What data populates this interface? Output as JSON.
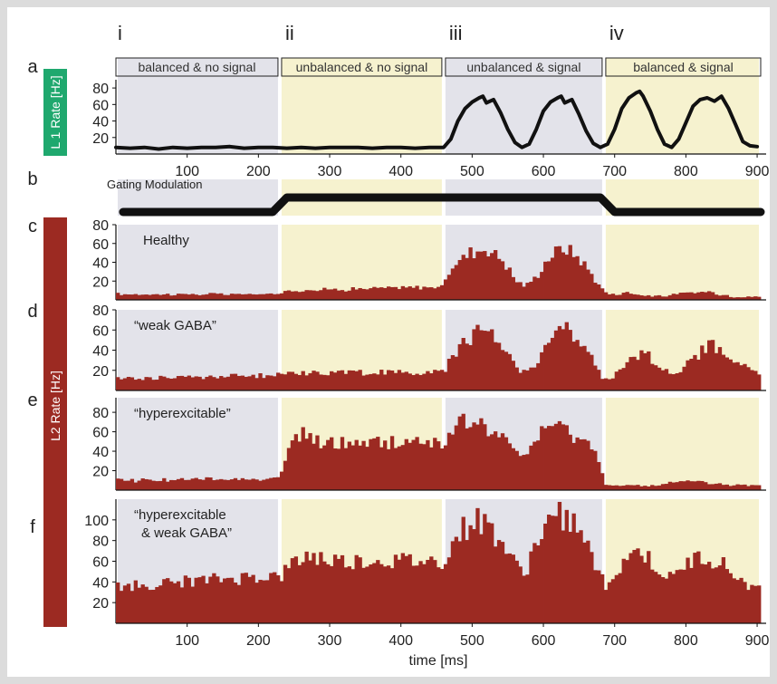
{
  "colors": {
    "background": "#dcdcdc",
    "panel": "#ffffff",
    "gray_band": "#e3e3ea",
    "yellow_band": "#f6f2cf",
    "l1_line": "#111111",
    "l2_bars": "#9c2a22",
    "l1_label_bg": "#1fa86e",
    "l2_label_bg": "#9c2a22"
  },
  "chart_data": {
    "type": "multi-panel",
    "phases": [
      {
        "numeral": "i",
        "label": "balanced & no signal",
        "x0": 0,
        "x1": 230,
        "band": "gray"
      },
      {
        "numeral": "ii",
        "label": "unbalanced & no signal",
        "x0": 230,
        "x1": 460,
        "band": "yellow"
      },
      {
        "numeral": "iii",
        "label": "unbalanced & signal",
        "x0": 460,
        "x1": 685,
        "band": "gray"
      },
      {
        "numeral": "iv",
        "label": "balanced & signal",
        "x0": 685,
        "x1": 905,
        "band": "yellow"
      }
    ],
    "xlim": [
      0,
      905
    ],
    "xticks": [
      100,
      200,
      300,
      400,
      500,
      600,
      700,
      800,
      900
    ],
    "xlabel": "time [ms]",
    "l1": {
      "letter": "a",
      "ylabel": "L 1 Rate [Hz]",
      "ylim": [
        0,
        90
      ],
      "yticks": [
        20,
        40,
        60,
        80
      ],
      "x": [
        0,
        20,
        40,
        60,
        80,
        100,
        120,
        140,
        160,
        180,
        200,
        220,
        240,
        260,
        280,
        300,
        320,
        340,
        360,
        380,
        400,
        420,
        440,
        460,
        470,
        480,
        490,
        500,
        510,
        515,
        520,
        530,
        540,
        550,
        560,
        570,
        580,
        590,
        600,
        610,
        620,
        625,
        630,
        640,
        650,
        660,
        670,
        680,
        690,
        700,
        710,
        720,
        730,
        735,
        740,
        750,
        760,
        770,
        780,
        790,
        800,
        810,
        820,
        830,
        840,
        850,
        860,
        870,
        880,
        890,
        900
      ],
      "y": [
        8,
        7,
        8,
        6,
        8,
        7,
        8,
        8,
        9,
        7,
        8,
        8,
        7,
        8,
        7,
        8,
        8,
        8,
        7,
        8,
        8,
        7,
        8,
        8,
        18,
        40,
        55,
        63,
        68,
        70,
        62,
        66,
        50,
        30,
        14,
        8,
        12,
        30,
        52,
        63,
        68,
        70,
        62,
        66,
        48,
        28,
        13,
        8,
        12,
        30,
        55,
        68,
        74,
        76,
        70,
        52,
        30,
        12,
        8,
        18,
        38,
        58,
        66,
        68,
        64,
        70,
        55,
        35,
        15,
        10,
        9
      ]
    },
    "gating": {
      "letter": "b",
      "label": "Gating Modulation",
      "x": [
        10,
        220,
        240,
        680,
        700,
        905
      ],
      "level": [
        0,
        0,
        1,
        1,
        0,
        0
      ]
    },
    "l2_ylabel": "L2 Rate [Hz]",
    "l2_bin_ms": 5,
    "l2": [
      {
        "letter": "c",
        "label": "Healthy",
        "ylim": [
          0,
          80
        ],
        "yticks": [
          20,
          40,
          60,
          80
        ],
        "base": [
          [
            0,
            6
          ],
          [
            230,
            6
          ],
          [
            240,
            10
          ],
          [
            460,
            14
          ],
          [
            470,
            35
          ],
          [
            500,
            52
          ],
          [
            520,
            55
          ],
          [
            540,
            45
          ],
          [
            560,
            22
          ],
          [
            575,
            14
          ],
          [
            590,
            25
          ],
          [
            610,
            48
          ],
          [
            630,
            56
          ],
          [
            650,
            45
          ],
          [
            670,
            25
          ],
          [
            685,
            8
          ],
          [
            700,
            6
          ],
          [
            720,
            8
          ],
          [
            740,
            5
          ],
          [
            760,
            4
          ],
          [
            780,
            5
          ],
          [
            800,
            7
          ],
          [
            830,
            9
          ],
          [
            860,
            4
          ],
          [
            905,
            3
          ]
        ]
      },
      {
        "letter": "d",
        "label": "“weak GABA”",
        "ylim": [
          0,
          80
        ],
        "yticks": [
          20,
          40,
          60,
          80
        ],
        "base": [
          [
            0,
            12
          ],
          [
            230,
            15
          ],
          [
            240,
            18
          ],
          [
            460,
            18
          ],
          [
            470,
            35
          ],
          [
            500,
            55
          ],
          [
            520,
            60
          ],
          [
            540,
            48
          ],
          [
            560,
            25
          ],
          [
            575,
            18
          ],
          [
            590,
            28
          ],
          [
            610,
            52
          ],
          [
            630,
            62
          ],
          [
            650,
            50
          ],
          [
            670,
            28
          ],
          [
            685,
            10
          ],
          [
            700,
            15
          ],
          [
            720,
            32
          ],
          [
            740,
            36
          ],
          [
            760,
            28
          ],
          [
            780,
            15
          ],
          [
            800,
            25
          ],
          [
            830,
            45
          ],
          [
            850,
            40
          ],
          [
            870,
            30
          ],
          [
            905,
            14
          ]
        ]
      },
      {
        "letter": "e",
        "label": "“hyperexcitable”",
        "ylim": [
          0,
          95
        ],
        "yticks": [
          20,
          40,
          60,
          80
        ],
        "base": [
          [
            0,
            10
          ],
          [
            230,
            12
          ],
          [
            240,
            40
          ],
          [
            260,
            58
          ],
          [
            280,
            50
          ],
          [
            300,
            48
          ],
          [
            460,
            50
          ],
          [
            470,
            55
          ],
          [
            490,
            72
          ],
          [
            510,
            68
          ],
          [
            540,
            55
          ],
          [
            560,
            38
          ],
          [
            575,
            35
          ],
          [
            590,
            55
          ],
          [
            610,
            66
          ],
          [
            630,
            62
          ],
          [
            660,
            50
          ],
          [
            680,
            30
          ],
          [
            685,
            6
          ],
          [
            700,
            5
          ],
          [
            740,
            4
          ],
          [
            760,
            5
          ],
          [
            800,
            10
          ],
          [
            830,
            8
          ],
          [
            860,
            5
          ],
          [
            905,
            4
          ]
        ]
      },
      {
        "letter": "f",
        "label": "“hyperexcitable\n& weak GABA”",
        "ylim": [
          0,
          120
        ],
        "yticks": [
          20,
          40,
          60,
          80,
          100
        ],
        "base": [
          [
            0,
            35
          ],
          [
            100,
            40
          ],
          [
            200,
            45
          ],
          [
            230,
            45
          ],
          [
            250,
            58
          ],
          [
            270,
            66
          ],
          [
            300,
            60
          ],
          [
            460,
            60
          ],
          [
            480,
            85
          ],
          [
            500,
            100
          ],
          [
            520,
            96
          ],
          [
            540,
            80
          ],
          [
            560,
            55
          ],
          [
            575,
            50
          ],
          [
            590,
            78
          ],
          [
            610,
            100
          ],
          [
            630,
            105
          ],
          [
            650,
            90
          ],
          [
            670,
            60
          ],
          [
            690,
            30
          ],
          [
            700,
            48
          ],
          [
            720,
            68
          ],
          [
            740,
            68
          ],
          [
            760,
            52
          ],
          [
            780,
            42
          ],
          [
            800,
            58
          ],
          [
            830,
            65
          ],
          [
            850,
            58
          ],
          [
            870,
            45
          ],
          [
            905,
            30
          ]
        ]
      }
    ]
  }
}
